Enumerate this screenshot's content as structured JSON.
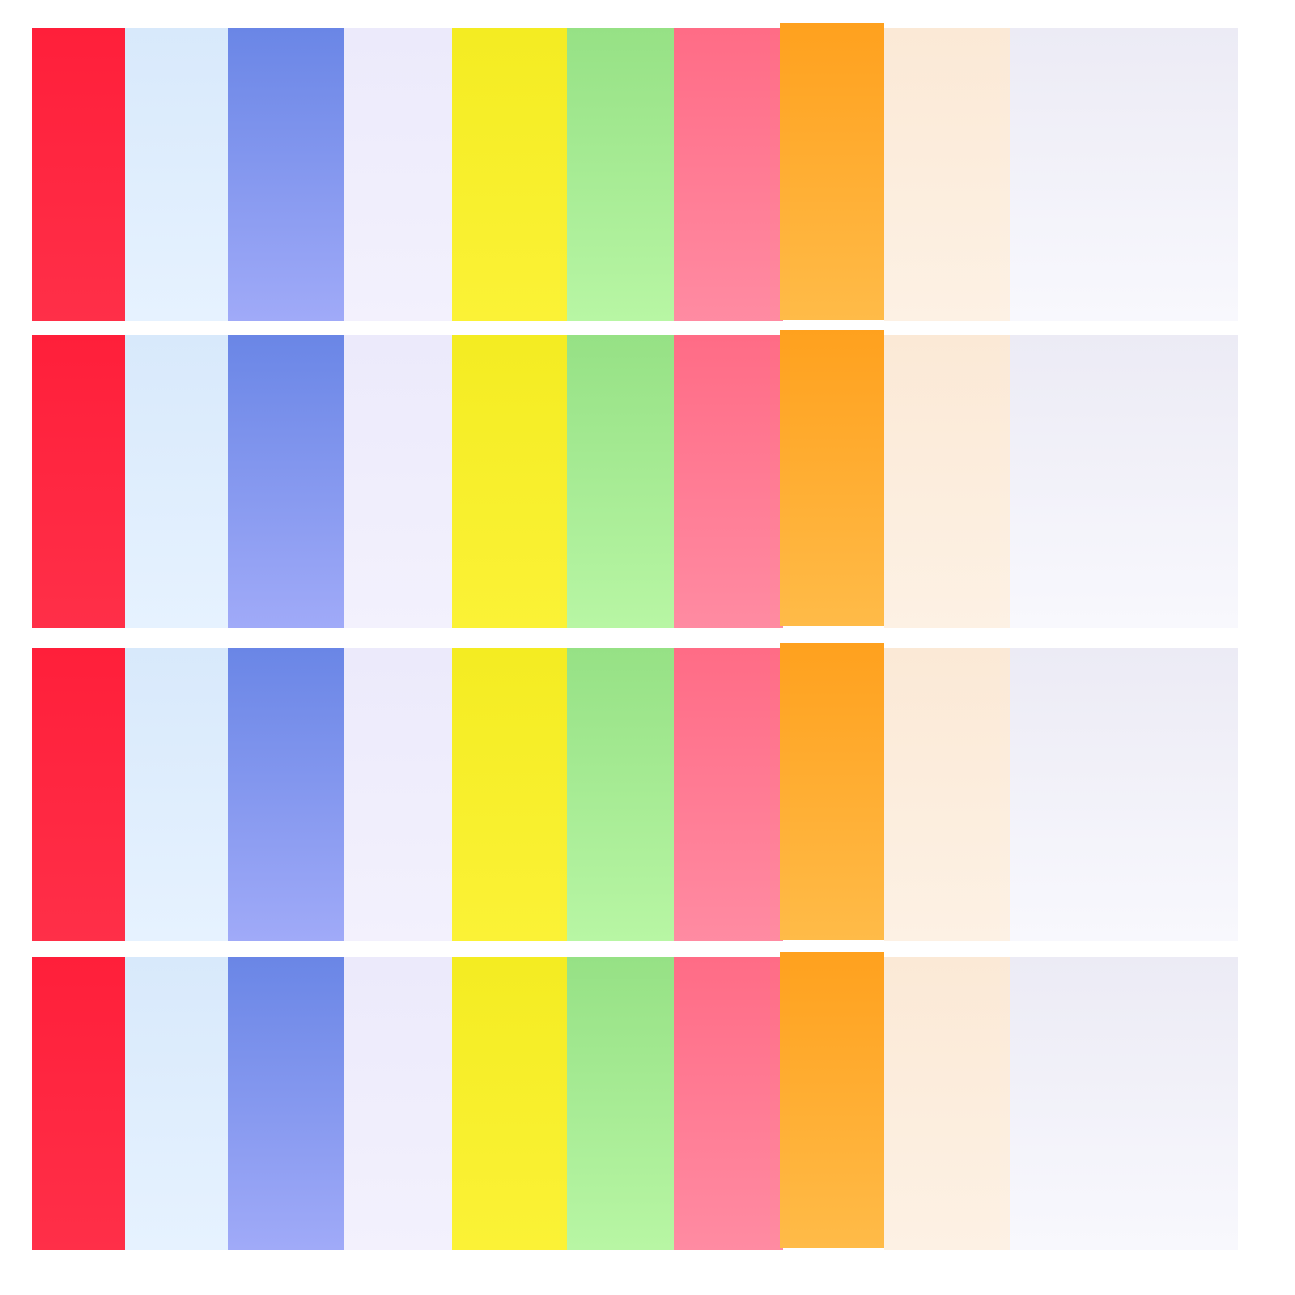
{
  "image": {
    "subject": "colored sheets",
    "rows": 4,
    "sheets": [
      {
        "name": "red",
        "top": "#ff1f3a",
        "bottom": "#ff2f48"
      },
      {
        "name": "light-blue",
        "top": "#d8e9fb",
        "bottom": "#e6f2ff"
      },
      {
        "name": "blue",
        "top": "#6a86e6",
        "bottom": "#a0aaf8"
      },
      {
        "name": "lavender-white",
        "top": "#eceafb",
        "bottom": "#f3f1fd"
      },
      {
        "name": "yellow",
        "top": "#f4ec22",
        "bottom": "#fbf236"
      },
      {
        "name": "green",
        "top": "#96e185",
        "bottom": "#b8f6a4"
      },
      {
        "name": "pink",
        "top": "#ff6c86",
        "bottom": "#ff8ba2"
      },
      {
        "name": "orange",
        "top": "#ffa11e",
        "bottom": "#ffbb48"
      },
      {
        "name": "cream",
        "top": "#fbe9d6",
        "bottom": "#fdf1e4"
      },
      {
        "name": "white",
        "top": "#ecebf5",
        "bottom": "#f8f8fd"
      }
    ]
  }
}
